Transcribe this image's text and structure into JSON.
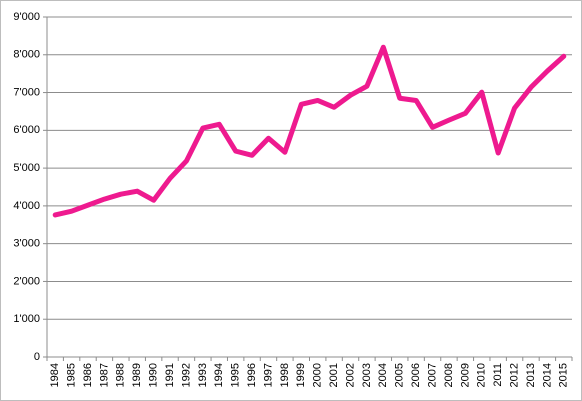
{
  "chart_data": {
    "type": "line",
    "categories": [
      "1984",
      "1985",
      "1986",
      "1987",
      "1988",
      "1989",
      "1990",
      "1991",
      "1992",
      "1993",
      "1994",
      "1995",
      "1996",
      "1997",
      "1998",
      "1999",
      "2000",
      "2001",
      "2002",
      "2003",
      "2004",
      "2005",
      "2006",
      "2007",
      "2008",
      "2009",
      "2010",
      "2011",
      "2012",
      "2013",
      "2014",
      "2015"
    ],
    "series": [
      {
        "color": "#ee1a8f",
        "values": [
          3760,
          3860,
          4020,
          4180,
          4310,
          4390,
          4150,
          4730,
          5190,
          6060,
          6160,
          5450,
          5340,
          5790,
          5420,
          6690,
          6790,
          6610,
          6930,
          7170,
          8200,
          6850,
          6790,
          6080,
          6270,
          6450,
          7010,
          5400,
          6590,
          7140,
          7570,
          7960
        ]
      }
    ],
    "ylim": [
      0,
      9000
    ],
    "yticks": [
      0,
      {
        "value": 1000,
        "label": "1'000"
      },
      {
        "value": 2000,
        "label": "2'000"
      },
      {
        "value": 3000,
        "label": "3'000"
      },
      {
        "value": 4000,
        "label": "4'000"
      },
      {
        "value": 5000,
        "label": "5'000"
      },
      {
        "value": 6000,
        "label": "6'000"
      },
      {
        "value": 7000,
        "label": "7'000"
      },
      {
        "value": 8000,
        "label": "8'000"
      },
      {
        "value": 9000,
        "label": "9'000"
      }
    ],
    "grid": true
  }
}
